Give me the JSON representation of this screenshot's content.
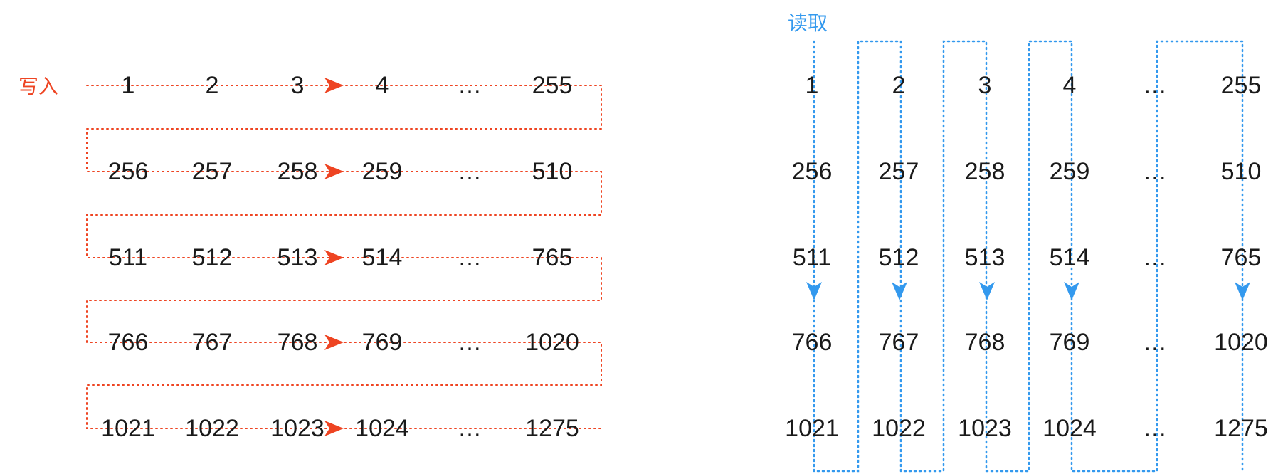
{
  "write_section": {
    "label": "写入",
    "rows": [
      [
        "1",
        "2",
        "3",
        "4",
        "…",
        "255"
      ],
      [
        "256",
        "257",
        "258",
        "259",
        "…",
        "510"
      ],
      [
        "511",
        "512",
        "513",
        "514",
        "…",
        "765"
      ],
      [
        "766",
        "767",
        "768",
        "769",
        "…",
        "1020"
      ],
      [
        "1021",
        "1022",
        "1023",
        "1024",
        "…",
        "1275"
      ]
    ]
  },
  "read_section": {
    "label": "读取",
    "rows": [
      [
        "1",
        "2",
        "3",
        "4",
        "…",
        "255"
      ],
      [
        "256",
        "257",
        "258",
        "259",
        "…",
        "510"
      ],
      [
        "511",
        "512",
        "513",
        "514",
        "…",
        "765"
      ],
      [
        "766",
        "767",
        "768",
        "769",
        "…",
        "1020"
      ],
      [
        "1021",
        "1022",
        "1023",
        "1024",
        "…",
        "1275"
      ]
    ]
  },
  "colors": {
    "write": "#ee4422",
    "read": "#3399ee",
    "text": "#1a1a1a"
  }
}
